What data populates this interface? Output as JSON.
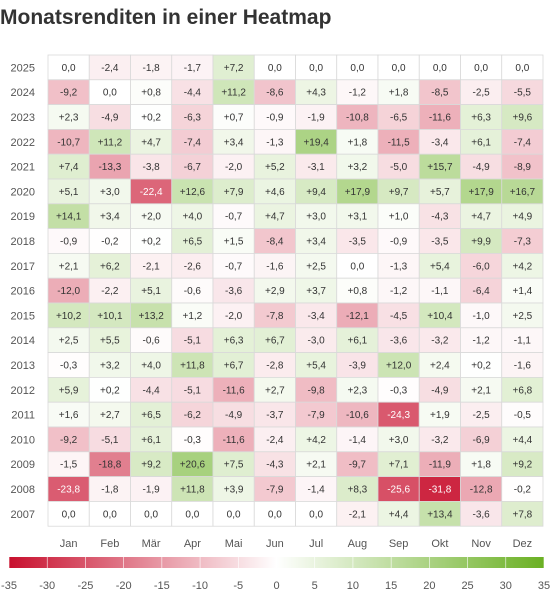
{
  "chart_data": {
    "type": "heatmap",
    "title": "Monatsrenditen in einer Heatmap",
    "x": [
      "Jan",
      "Feb",
      "Mär",
      "Apr",
      "Mai",
      "Jun",
      "Jul",
      "Aug",
      "Sep",
      "Okt",
      "Nov",
      "Dez"
    ],
    "y": [
      "2025",
      "2024",
      "2023",
      "2022",
      "2021",
      "2020",
      "2019",
      "2018",
      "2017",
      "2016",
      "2015",
      "2014",
      "2013",
      "2012",
      "2011",
      "2010",
      "2009",
      "2008",
      "2007"
    ],
    "values": [
      [
        0.0,
        -2.4,
        -1.8,
        -1.7,
        7.2,
        0.0,
        0.0,
        0.0,
        0.0,
        0.0,
        0.0,
        0.0
      ],
      [
        -9.2,
        0.0,
        0.8,
        -4.4,
        11.2,
        -8.6,
        4.3,
        -1.2,
        1.8,
        -8.5,
        -2.5,
        -5.5
      ],
      [
        2.3,
        -4.9,
        0.2,
        -6.3,
        0.7,
        -0.9,
        -1.9,
        -10.8,
        -6.5,
        -11.6,
        6.3,
        9.6
      ],
      [
        -10.7,
        11.2,
        4.7,
        -7.4,
        3.4,
        -1.3,
        19.4,
        1.8,
        -11.5,
        -3.4,
        6.1,
        -7.4
      ],
      [
        7.4,
        -13.3,
        -3.8,
        -6.7,
        -2.0,
        5.2,
        -3.1,
        3.2,
        -5.0,
        15.7,
        -4.9,
        -8.9
      ],
      [
        5.1,
        3.0,
        -22.4,
        12.6,
        7.9,
        4.6,
        9.4,
        17.9,
        9.7,
        5.7,
        17.9,
        16.7
      ],
      [
        14.1,
        3.4,
        2.0,
        4.0,
        -0.7,
        4.7,
        3.0,
        3.1,
        1.0,
        -4.3,
        4.7,
        4.9
      ],
      [
        -0.9,
        -0.2,
        0.2,
        6.5,
        1.5,
        -8.4,
        3.4,
        -3.5,
        -0.9,
        -3.5,
        9.9,
        -7.3
      ],
      [
        2.1,
        6.2,
        -2.1,
        -2.6,
        -0.7,
        -1.6,
        2.5,
        0.0,
        -1.3,
        5.4,
        -6.0,
        4.2
      ],
      [
        -12.0,
        -2.2,
        5.1,
        -0.6,
        -3.6,
        2.9,
        3.7,
        0.8,
        -1.2,
        -1.1,
        -6.4,
        1.4
      ],
      [
        10.2,
        10.1,
        13.2,
        1.2,
        -2.0,
        -7.8,
        -3.4,
        -12.1,
        -4.5,
        10.4,
        -1.0,
        2.5
      ],
      [
        2.5,
        5.5,
        -0.6,
        -5.1,
        6.3,
        6.7,
        -3.0,
        6.1,
        -3.6,
        -3.2,
        -1.2,
        -1.1
      ],
      [
        -0.3,
        3.2,
        4.0,
        11.8,
        6.7,
        -2.8,
        5.4,
        -3.9,
        12.0,
        2.4,
        0.2,
        -1.6
      ],
      [
        5.9,
        0.2,
        -4.4,
        -5.1,
        -11.6,
        2.7,
        -9.8,
        2.3,
        -0.3,
        -4.9,
        2.1,
        6.8
      ],
      [
        1.6,
        2.7,
        6.5,
        -6.2,
        -4.9,
        -3.7,
        -7.9,
        -10.6,
        -24.3,
        1.9,
        -2.5,
        -0.5
      ],
      [
        -9.2,
        -5.1,
        6.1,
        -0.3,
        -11.6,
        -2.4,
        4.2,
        -1.4,
        3.0,
        -3.2,
        -6.9,
        4.4
      ],
      [
        -1.5,
        -18.8,
        9.2,
        20.6,
        7.5,
        -4.3,
        2.1,
        -9.7,
        7.1,
        -11.9,
        1.8,
        9.2
      ],
      [
        -23.8,
        -1.8,
        -1.9,
        11.8,
        3.9,
        -7.9,
        -1.4,
        8.3,
        -25.6,
        -31.8,
        -12.8,
        -0.2
      ],
      [
        0.0,
        0.0,
        0.0,
        0.0,
        0.0,
        0.0,
        0.0,
        -2.1,
        4.4,
        13.4,
        -3.6,
        7.8
      ]
    ],
    "colorscale": {
      "min": -35,
      "max": 35,
      "ticks": [
        -35,
        -30,
        -25,
        -20,
        -15,
        -10,
        -5,
        0,
        5,
        10,
        15,
        20,
        25,
        30,
        35
      ],
      "negative_color": "#c8102e",
      "positive_color": "#6ab023",
      "zero_color": "#ffffff"
    },
    "legend_position": "bottom"
  }
}
